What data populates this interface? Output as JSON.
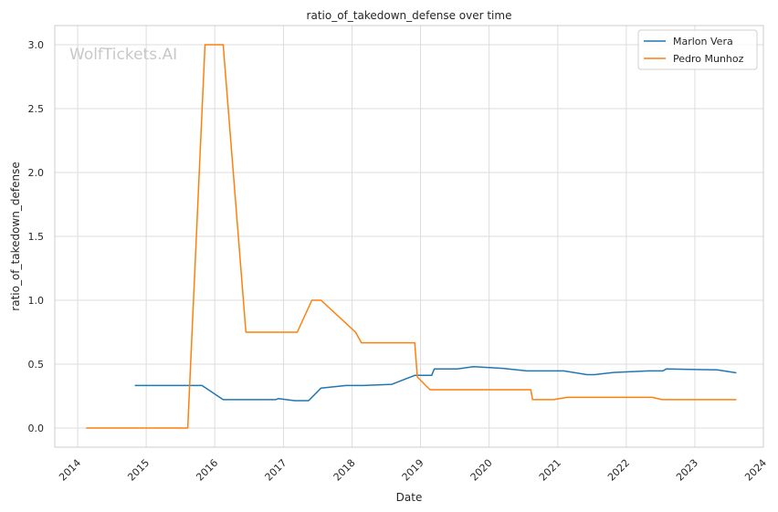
{
  "chart_data": {
    "type": "line",
    "title": "ratio_of_takedown_defense over time",
    "xlabel": "Date",
    "ylabel": "ratio_of_takedown_defense",
    "watermark": "WolfTickets.AI",
    "x_range": [
      "2013-09-01",
      "2024-01-01"
    ],
    "ylim": [
      -0.15,
      3.15
    ],
    "x_ticks": [
      "2014",
      "2015",
      "2016",
      "2017",
      "2018",
      "2019",
      "2020",
      "2021",
      "2022",
      "2023",
      "2024"
    ],
    "y_ticks": [
      "0.0",
      "0.5",
      "1.0",
      "1.5",
      "2.0",
      "2.5",
      "3.0"
    ],
    "grid": true,
    "legend_position": "top-right",
    "series": [
      {
        "name": "Marlon Vera",
        "color": "#1f77b4",
        "points": [
          [
            "2014-11-01",
            0.333
          ],
          [
            "2015-10-25",
            0.333
          ],
          [
            "2016-02-15",
            0.222
          ],
          [
            "2016-11-20",
            0.222
          ],
          [
            "2016-12-05",
            0.231
          ],
          [
            "2017-03-01",
            0.214
          ],
          [
            "2017-05-15",
            0.214
          ],
          [
            "2017-07-20",
            0.313
          ],
          [
            "2017-12-01",
            0.333
          ],
          [
            "2018-03-01",
            0.333
          ],
          [
            "2018-08-01",
            0.342
          ],
          [
            "2018-12-01",
            0.412
          ],
          [
            "2019-03-01",
            0.412
          ],
          [
            "2019-03-15",
            0.462
          ],
          [
            "2019-07-15",
            0.462
          ],
          [
            "2019-10-10",
            0.481
          ],
          [
            "2020-03-15",
            0.467
          ],
          [
            "2020-07-20",
            0.447
          ],
          [
            "2021-02-01",
            0.447
          ],
          [
            "2021-06-05",
            0.418
          ],
          [
            "2021-07-15",
            0.418
          ],
          [
            "2021-10-25",
            0.435
          ],
          [
            "2022-04-30",
            0.447
          ],
          [
            "2022-07-15",
            0.447
          ],
          [
            "2022-08-01",
            0.462
          ],
          [
            "2023-04-30",
            0.455
          ],
          [
            "2023-08-10",
            0.432
          ]
        ]
      },
      {
        "name": "Pedro Munhoz",
        "color": "#ff7f0e",
        "points": [
          [
            "2014-02-15",
            0.0
          ],
          [
            "2015-08-10",
            0.0
          ],
          [
            "2015-11-10",
            3.0
          ],
          [
            "2016-02-15",
            3.0
          ],
          [
            "2016-06-15",
            0.75
          ],
          [
            "2017-03-15",
            0.75
          ],
          [
            "2017-06-01",
            1.0
          ],
          [
            "2017-07-20",
            1.0
          ],
          [
            "2018-01-20",
            0.75
          ],
          [
            "2018-02-20",
            0.667
          ],
          [
            "2018-12-01",
            0.667
          ],
          [
            "2018-12-15",
            0.4
          ],
          [
            "2019-02-20",
            0.3
          ],
          [
            "2020-08-10",
            0.3
          ],
          [
            "2020-08-20",
            0.222
          ],
          [
            "2020-12-10",
            0.222
          ],
          [
            "2021-02-20",
            0.24
          ],
          [
            "2022-05-20",
            0.24
          ],
          [
            "2022-07-10",
            0.222
          ],
          [
            "2023-08-10",
            0.222
          ]
        ]
      }
    ]
  }
}
